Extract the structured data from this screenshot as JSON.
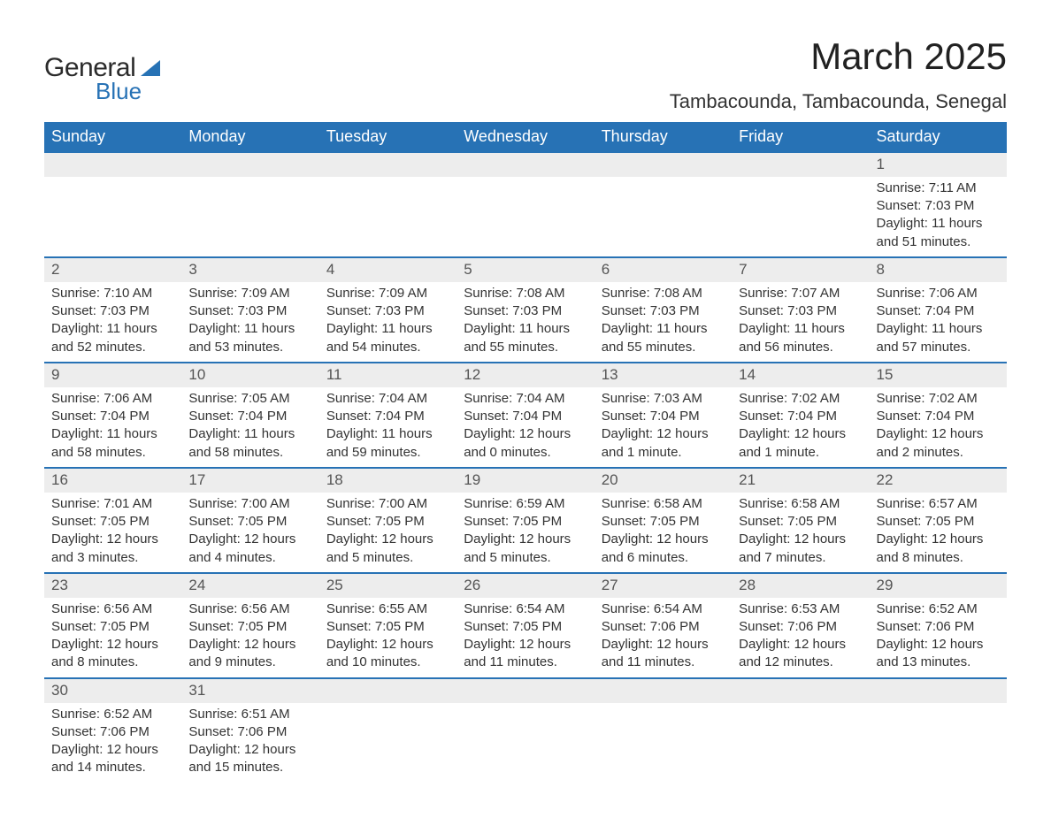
{
  "logo": {
    "general": "General",
    "blue": "Blue"
  },
  "title": "March 2025",
  "location": "Tambacounda, Tambacounda, Senegal",
  "colors": {
    "header_bg": "#2772b5",
    "header_text": "#ffffff",
    "daynum_bg": "#ededed",
    "border": "#2772b5",
    "text": "#333333",
    "logo_blue": "#2772b5"
  },
  "day_headers": [
    "Sunday",
    "Monday",
    "Tuesday",
    "Wednesday",
    "Thursday",
    "Friday",
    "Saturday"
  ],
  "weeks": [
    [
      null,
      null,
      null,
      null,
      null,
      null,
      {
        "n": "1",
        "sr": "Sunrise: 7:11 AM",
        "ss": "Sunset: 7:03 PM",
        "d1": "Daylight: 11 hours",
        "d2": "and 51 minutes."
      }
    ],
    [
      {
        "n": "2",
        "sr": "Sunrise: 7:10 AM",
        "ss": "Sunset: 7:03 PM",
        "d1": "Daylight: 11 hours",
        "d2": "and 52 minutes."
      },
      {
        "n": "3",
        "sr": "Sunrise: 7:09 AM",
        "ss": "Sunset: 7:03 PM",
        "d1": "Daylight: 11 hours",
        "d2": "and 53 minutes."
      },
      {
        "n": "4",
        "sr": "Sunrise: 7:09 AM",
        "ss": "Sunset: 7:03 PM",
        "d1": "Daylight: 11 hours",
        "d2": "and 54 minutes."
      },
      {
        "n": "5",
        "sr": "Sunrise: 7:08 AM",
        "ss": "Sunset: 7:03 PM",
        "d1": "Daylight: 11 hours",
        "d2": "and 55 minutes."
      },
      {
        "n": "6",
        "sr": "Sunrise: 7:08 AM",
        "ss": "Sunset: 7:03 PM",
        "d1": "Daylight: 11 hours",
        "d2": "and 55 minutes."
      },
      {
        "n": "7",
        "sr": "Sunrise: 7:07 AM",
        "ss": "Sunset: 7:03 PM",
        "d1": "Daylight: 11 hours",
        "d2": "and 56 minutes."
      },
      {
        "n": "8",
        "sr": "Sunrise: 7:06 AM",
        "ss": "Sunset: 7:04 PM",
        "d1": "Daylight: 11 hours",
        "d2": "and 57 minutes."
      }
    ],
    [
      {
        "n": "9",
        "sr": "Sunrise: 7:06 AM",
        "ss": "Sunset: 7:04 PM",
        "d1": "Daylight: 11 hours",
        "d2": "and 58 minutes."
      },
      {
        "n": "10",
        "sr": "Sunrise: 7:05 AM",
        "ss": "Sunset: 7:04 PM",
        "d1": "Daylight: 11 hours",
        "d2": "and 58 minutes."
      },
      {
        "n": "11",
        "sr": "Sunrise: 7:04 AM",
        "ss": "Sunset: 7:04 PM",
        "d1": "Daylight: 11 hours",
        "d2": "and 59 minutes."
      },
      {
        "n": "12",
        "sr": "Sunrise: 7:04 AM",
        "ss": "Sunset: 7:04 PM",
        "d1": "Daylight: 12 hours",
        "d2": "and 0 minutes."
      },
      {
        "n": "13",
        "sr": "Sunrise: 7:03 AM",
        "ss": "Sunset: 7:04 PM",
        "d1": "Daylight: 12 hours",
        "d2": "and 1 minute."
      },
      {
        "n": "14",
        "sr": "Sunrise: 7:02 AM",
        "ss": "Sunset: 7:04 PM",
        "d1": "Daylight: 12 hours",
        "d2": "and 1 minute."
      },
      {
        "n": "15",
        "sr": "Sunrise: 7:02 AM",
        "ss": "Sunset: 7:04 PM",
        "d1": "Daylight: 12 hours",
        "d2": "and 2 minutes."
      }
    ],
    [
      {
        "n": "16",
        "sr": "Sunrise: 7:01 AM",
        "ss": "Sunset: 7:05 PM",
        "d1": "Daylight: 12 hours",
        "d2": "and 3 minutes."
      },
      {
        "n": "17",
        "sr": "Sunrise: 7:00 AM",
        "ss": "Sunset: 7:05 PM",
        "d1": "Daylight: 12 hours",
        "d2": "and 4 minutes."
      },
      {
        "n": "18",
        "sr": "Sunrise: 7:00 AM",
        "ss": "Sunset: 7:05 PM",
        "d1": "Daylight: 12 hours",
        "d2": "and 5 minutes."
      },
      {
        "n": "19",
        "sr": "Sunrise: 6:59 AM",
        "ss": "Sunset: 7:05 PM",
        "d1": "Daylight: 12 hours",
        "d2": "and 5 minutes."
      },
      {
        "n": "20",
        "sr": "Sunrise: 6:58 AM",
        "ss": "Sunset: 7:05 PM",
        "d1": "Daylight: 12 hours",
        "d2": "and 6 minutes."
      },
      {
        "n": "21",
        "sr": "Sunrise: 6:58 AM",
        "ss": "Sunset: 7:05 PM",
        "d1": "Daylight: 12 hours",
        "d2": "and 7 minutes."
      },
      {
        "n": "22",
        "sr": "Sunrise: 6:57 AM",
        "ss": "Sunset: 7:05 PM",
        "d1": "Daylight: 12 hours",
        "d2": "and 8 minutes."
      }
    ],
    [
      {
        "n": "23",
        "sr": "Sunrise: 6:56 AM",
        "ss": "Sunset: 7:05 PM",
        "d1": "Daylight: 12 hours",
        "d2": "and 8 minutes."
      },
      {
        "n": "24",
        "sr": "Sunrise: 6:56 AM",
        "ss": "Sunset: 7:05 PM",
        "d1": "Daylight: 12 hours",
        "d2": "and 9 minutes."
      },
      {
        "n": "25",
        "sr": "Sunrise: 6:55 AM",
        "ss": "Sunset: 7:05 PM",
        "d1": "Daylight: 12 hours",
        "d2": "and 10 minutes."
      },
      {
        "n": "26",
        "sr": "Sunrise: 6:54 AM",
        "ss": "Sunset: 7:05 PM",
        "d1": "Daylight: 12 hours",
        "d2": "and 11 minutes."
      },
      {
        "n": "27",
        "sr": "Sunrise: 6:54 AM",
        "ss": "Sunset: 7:06 PM",
        "d1": "Daylight: 12 hours",
        "d2": "and 11 minutes."
      },
      {
        "n": "28",
        "sr": "Sunrise: 6:53 AM",
        "ss": "Sunset: 7:06 PM",
        "d1": "Daylight: 12 hours",
        "d2": "and 12 minutes."
      },
      {
        "n": "29",
        "sr": "Sunrise: 6:52 AM",
        "ss": "Sunset: 7:06 PM",
        "d1": "Daylight: 12 hours",
        "d2": "and 13 minutes."
      }
    ],
    [
      {
        "n": "30",
        "sr": "Sunrise: 6:52 AM",
        "ss": "Sunset: 7:06 PM",
        "d1": "Daylight: 12 hours",
        "d2": "and 14 minutes."
      },
      {
        "n": "31",
        "sr": "Sunrise: 6:51 AM",
        "ss": "Sunset: 7:06 PM",
        "d1": "Daylight: 12 hours",
        "d2": "and 15 minutes."
      },
      null,
      null,
      null,
      null,
      null
    ]
  ]
}
